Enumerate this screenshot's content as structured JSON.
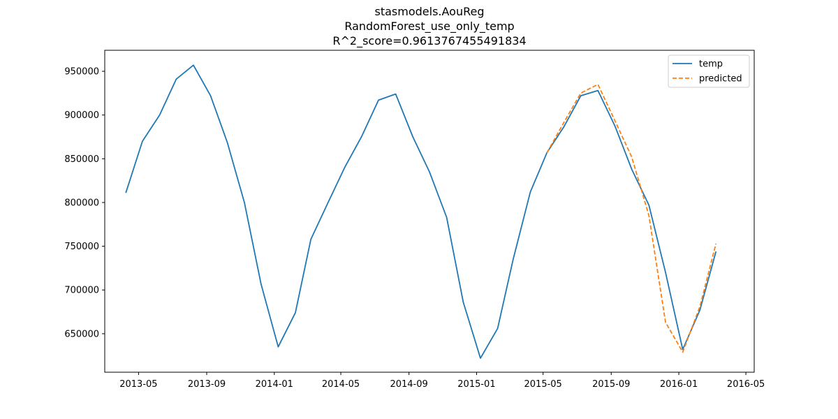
{
  "chart_data": {
    "type": "line",
    "title_lines": [
      "stasmodels.AouReg",
      "RandomForest_use_only_temp",
      "R^2_score=0.9613767455491834"
    ],
    "xlabel": "",
    "ylabel": "",
    "x_ticks": [
      "2013-05",
      "2013-09",
      "2014-01",
      "2014-05",
      "2014-09",
      "2015-01",
      "2015-05",
      "2015-09",
      "2016-01",
      "2016-05"
    ],
    "y_ticks": [
      650000,
      700000,
      750000,
      800000,
      850000,
      900000,
      950000
    ],
    "xlim": [
      "2013-03-01",
      "2016-05-16"
    ],
    "ylim": [
      606000,
      974000
    ],
    "legend_position": "top-right",
    "grid": false,
    "series": [
      {
        "name": "temp",
        "color": "#1f77b4",
        "style": "solid",
        "x": [
          "2013-04-08",
          "2013-05-08",
          "2013-06-08",
          "2013-07-08",
          "2013-08-08",
          "2013-09-08",
          "2013-10-08",
          "2013-11-08",
          "2013-12-08",
          "2014-01-08",
          "2014-02-08",
          "2014-03-08",
          "2014-04-08",
          "2014-05-08",
          "2014-06-08",
          "2014-07-08",
          "2014-08-08",
          "2014-09-08",
          "2014-10-08",
          "2014-11-08",
          "2014-12-08",
          "2015-01-08",
          "2015-02-08",
          "2015-03-08",
          "2015-04-08",
          "2015-05-08",
          "2015-06-08",
          "2015-07-08",
          "2015-08-08",
          "2015-09-08",
          "2015-10-08",
          "2015-11-08",
          "2015-12-08",
          "2016-01-08",
          "2016-02-08",
          "2016-03-08"
        ],
        "values": [
          811000,
          870000,
          900000,
          941000,
          957000,
          922000,
          869000,
          800000,
          707000,
          635000,
          674000,
          758000,
          800000,
          840000,
          876000,
          917000,
          924000,
          875000,
          835000,
          783000,
          686000,
          622000,
          656000,
          735000,
          812000,
          857000,
          887000,
          922000,
          928000,
          887000,
          838000,
          797000,
          720000,
          632000,
          677000,
          744000
        ]
      },
      {
        "name": "predicted",
        "color": "#ff7f0e",
        "style": "dashed",
        "x": [
          "2015-05-08",
          "2015-06-08",
          "2015-07-08",
          "2015-08-08",
          "2015-09-08",
          "2015-10-08",
          "2015-11-08",
          "2015-12-08",
          "2016-01-08",
          "2016-02-08",
          "2016-03-08"
        ],
        "values": [
          857000,
          892000,
          925000,
          935000,
          893000,
          852000,
          785000,
          663000,
          629000,
          681000,
          753000
        ]
      }
    ]
  }
}
